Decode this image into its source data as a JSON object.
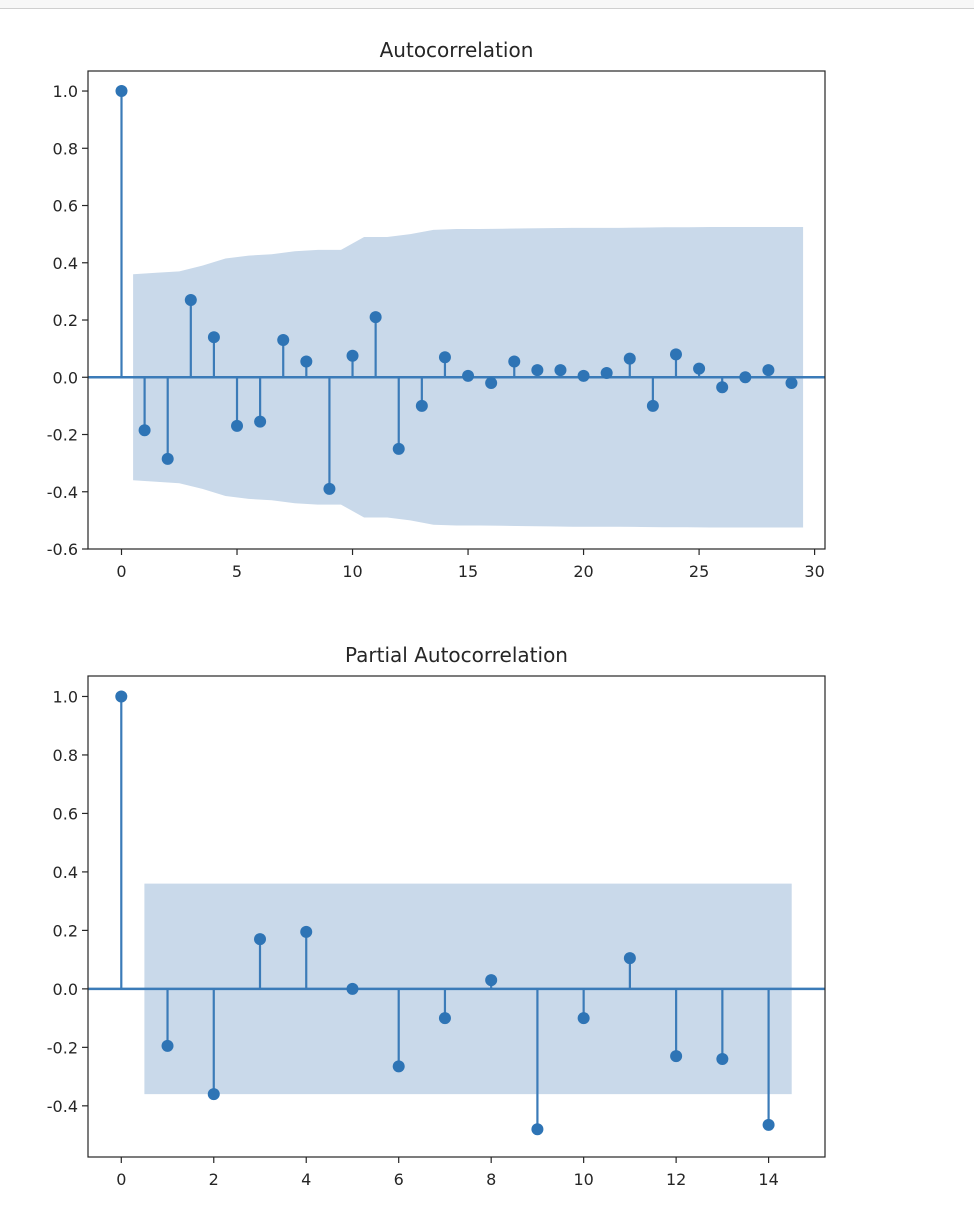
{
  "colors": {
    "stem": "#3b7bb8",
    "marker": "#2e74b5",
    "band": "#c9d9ea",
    "frame": "#262626",
    "text": "#262626"
  },
  "chart_data": [
    {
      "type": "stem",
      "title": "Autocorrelation",
      "xlim": [
        -1.45,
        30.45
      ],
      "ylim": [
        -0.6,
        1.07
      ],
      "xticks": [
        0,
        5,
        10,
        15,
        20,
        25,
        30
      ],
      "xtick_labels": [
        "0",
        "5",
        "10",
        "15",
        "20",
        "25",
        "30"
      ],
      "yticks": [
        1.0,
        0.8,
        0.6,
        0.4,
        0.2,
        0.0,
        -0.2,
        -0.4,
        -0.6
      ],
      "ytick_labels": [
        "1.0",
        "0.8",
        "0.6",
        "0.4",
        "0.2",
        "0.0",
        "-0.2",
        "-0.4",
        "-0.6"
      ],
      "x": [
        0,
        1,
        2,
        3,
        4,
        5,
        6,
        7,
        8,
        9,
        10,
        11,
        12,
        13,
        14,
        15,
        16,
        17,
        18,
        19,
        20,
        21,
        22,
        23,
        24,
        25,
        26,
        27,
        28,
        29
      ],
      "values": [
        1.0,
        -0.185,
        -0.285,
        0.27,
        0.14,
        -0.17,
        -0.155,
        0.13,
        0.055,
        -0.39,
        0.075,
        0.21,
        -0.25,
        -0.1,
        0.07,
        0.005,
        -0.02,
        0.055,
        0.025,
        0.025,
        0.005,
        0.015,
        0.065,
        -0.1,
        0.08,
        0.03,
        -0.035,
        0.0,
        0.025,
        -0.02
      ],
      "confidence_x": [
        0.5,
        1.5,
        2.5,
        3.5,
        4.5,
        5.5,
        6.5,
        7.5,
        8.5,
        9.5,
        10.5,
        11.5,
        12.5,
        13.5,
        14.5,
        15.5,
        16.5,
        17.5,
        18.5,
        19.5,
        20.5,
        21.5,
        22.5,
        23.5,
        24.5,
        25.5,
        26.5,
        27.5,
        28.5,
        29.5
      ],
      "confidence_upper": [
        0.36,
        0.365,
        0.37,
        0.39,
        0.415,
        0.425,
        0.43,
        0.44,
        0.445,
        0.445,
        0.49,
        0.49,
        0.5,
        0.515,
        0.518,
        0.518,
        0.519,
        0.52,
        0.521,
        0.522,
        0.522,
        0.522,
        0.523,
        0.524,
        0.524,
        0.525,
        0.525,
        0.525,
        0.525,
        0.525
      ]
    },
    {
      "type": "stem",
      "title": "Partial Autocorrelation",
      "xlim": [
        -0.72,
        15.22
      ],
      "ylim": [
        -0.575,
        1.07
      ],
      "xticks": [
        0,
        2,
        4,
        6,
        8,
        10,
        12,
        14
      ],
      "xtick_labels": [
        "0",
        "2",
        "4",
        "6",
        "8",
        "10",
        "12",
        "14"
      ],
      "yticks": [
        1.0,
        0.8,
        0.6,
        0.4,
        0.2,
        0.0,
        -0.2,
        -0.4
      ],
      "ytick_labels": [
        "1.0",
        "0.8",
        "0.6",
        "0.4",
        "0.2",
        "0.0",
        "-0.2",
        "-0.4"
      ],
      "x": [
        0,
        1,
        2,
        3,
        4,
        5,
        6,
        7,
        8,
        9,
        10,
        11,
        12,
        13,
        14
      ],
      "values": [
        1.0,
        -0.195,
        -0.36,
        0.17,
        0.195,
        0.0,
        -0.265,
        -0.1,
        0.03,
        -0.48,
        -0.1,
        0.105,
        -0.23,
        -0.24,
        -0.465
      ],
      "confidence_x": [
        0.5,
        14.5
      ],
      "confidence_upper": [
        0.36,
        0.36
      ]
    }
  ]
}
